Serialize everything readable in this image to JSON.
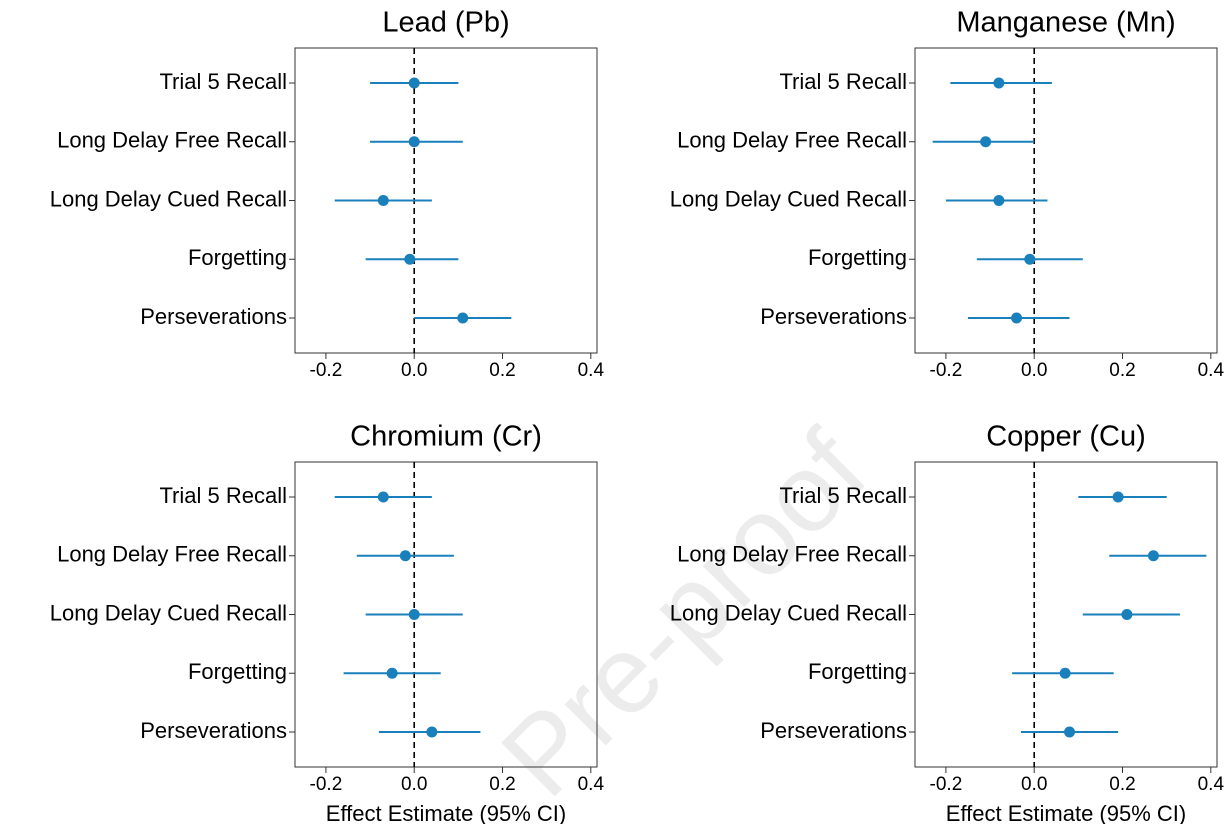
{
  "watermark": "Pre-proof",
  "chart_data": [
    {
      "type": "forest",
      "title": "Lead (Pb)",
      "color": "#1a80bb",
      "refline": 0,
      "categories": [
        "Trial 5 Recall",
        "Long Delay Free Recall",
        "Long Delay Cued Recall",
        "Forgetting",
        "Perseverations"
      ],
      "values": [
        0.0,
        0.0,
        -0.07,
        -0.01,
        0.11
      ],
      "lower": [
        -0.1,
        -0.1,
        -0.18,
        -0.11,
        0.0
      ],
      "upper": [
        0.1,
        0.11,
        0.04,
        0.1,
        0.22
      ],
      "xlim": [
        -0.27,
        0.414
      ],
      "xticks": [
        -0.2,
        {
          "value": 0,
          "label": "0.0"
        },
        0.2,
        0.4
      ]
    },
    {
      "type": "forest",
      "title": "Manganese (Mn)",
      "color": "#1a80bb",
      "refline": 0,
      "categories": [
        "Trial 5 Recall",
        "Long Delay Free Recall",
        "Long Delay Cued Recall",
        "Forgetting",
        "Perseverations"
      ],
      "values": [
        -0.08,
        -0.11,
        -0.08,
        -0.01,
        -0.04
      ],
      "lower": [
        -0.19,
        -0.23,
        -0.2,
        -0.13,
        -0.15
      ],
      "upper": [
        0.04,
        0.0,
        0.03,
        0.11,
        0.08
      ],
      "xlim": [
        -0.27,
        0.414
      ],
      "xticks": [
        -0.2,
        {
          "value": 0,
          "label": "0.0"
        },
        0.2,
        0.4
      ]
    },
    {
      "type": "forest",
      "title": "Chromium (Cr)",
      "color": "#1a80bb",
      "refline": 0,
      "xlabel": "Effect Estimate (95% CI)",
      "categories": [
        "Trial 5 Recall",
        "Long Delay Free Recall",
        "Long Delay Cued Recall",
        "Forgetting",
        "Perseverations"
      ],
      "values": [
        -0.07,
        -0.02,
        0.0,
        -0.05,
        0.04
      ],
      "lower": [
        -0.18,
        -0.13,
        -0.11,
        -0.16,
        -0.08
      ],
      "upper": [
        0.04,
        0.09,
        0.11,
        0.06,
        0.15
      ],
      "xlim": [
        -0.27,
        0.414
      ],
      "xticks": [
        -0.2,
        {
          "value": 0,
          "label": "0.0"
        },
        0.2,
        0.4
      ]
    },
    {
      "type": "forest",
      "title": "Copper (Cu)",
      "color": "#1a80bb",
      "refline": 0,
      "xlabel": "Effect Estimate (95% CI)",
      "categories": [
        "Trial 5 Recall",
        "Long Delay Free Recall",
        "Long Delay Cued Recall",
        "Forgetting",
        "Perseverations"
      ],
      "values": [
        0.19,
        0.27,
        0.21,
        0.07,
        0.08
      ],
      "lower": [
        0.1,
        0.17,
        0.11,
        -0.05,
        -0.03
      ],
      "upper": [
        0.3,
        0.39,
        0.33,
        0.18,
        0.19
      ],
      "xlim": [
        -0.27,
        0.414
      ],
      "xticks": [
        -0.2,
        {
          "value": 0,
          "label": "0.0"
        },
        0.2,
        0.4
      ]
    }
  ]
}
